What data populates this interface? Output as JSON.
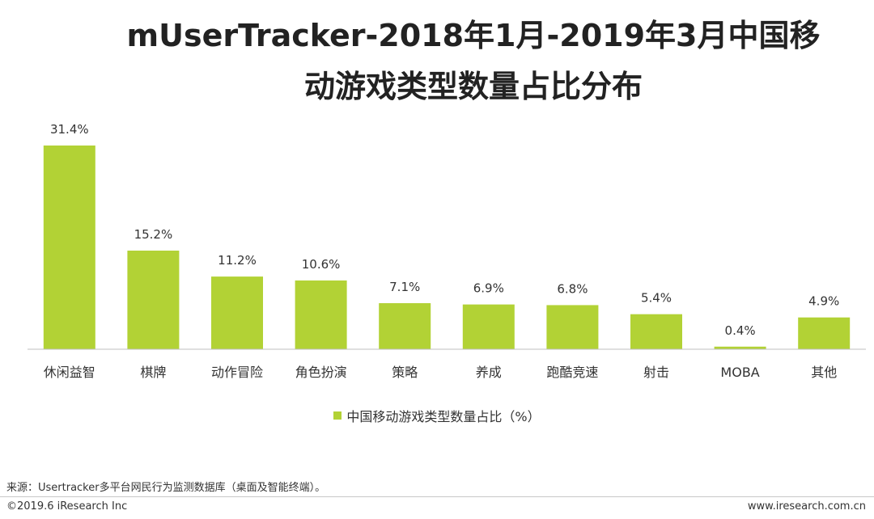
{
  "title_line1": "mUserTracker-2018年1月-2019年3月中国移",
  "title_line2": "动游戏类型数量占比分布",
  "legend_label": "中国移动游戏类型数量占比（%）",
  "bar_color": "#b2d235",
  "source": "来源：Usertracker多平台网民行为监测数据库（桌面及智能终端）。",
  "copyright": "©2019.6 iResearch Inc",
  "site": "www.iresearch.com.cn",
  "chart_data": {
    "type": "bar",
    "title": "mUserTracker-2018年1月-2019年3月中国移动游戏类型数量占比分布",
    "categories": [
      "休闲益智",
      "棋牌",
      "动作冒险",
      "角色扮演",
      "策略",
      "养成",
      "跑酷竞速",
      "射击",
      "MOBA",
      "其他"
    ],
    "series": [
      {
        "name": "中国移动游戏类型数量占比（%）",
        "values": [
          31.4,
          15.2,
          11.2,
          10.6,
          7.1,
          6.9,
          6.8,
          5.4,
          0.4,
          4.9
        ]
      }
    ],
    "value_labels": [
      "31.4%",
      "15.2%",
      "11.2%",
      "10.6%",
      "7.1%",
      "6.9%",
      "6.8%",
      "5.4%",
      "0.4%",
      "4.9%"
    ],
    "ylim": [
      0,
      31.4
    ],
    "grid": false,
    "legend_position": "bottom"
  }
}
